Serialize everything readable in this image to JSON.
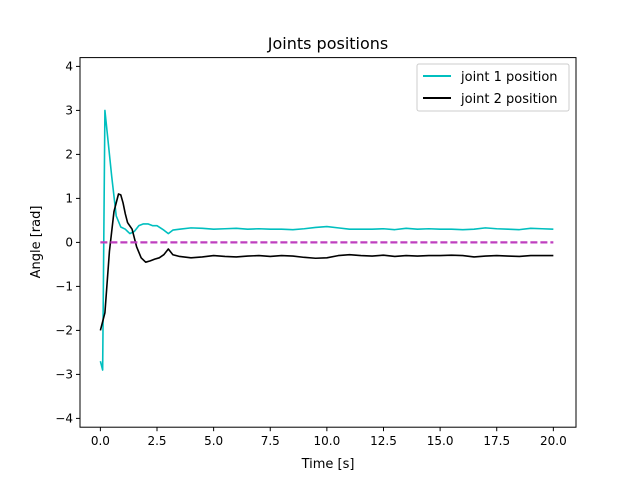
{
  "chart_data": {
    "type": "line",
    "title": "Joints positions",
    "xlabel": "Time [s]",
    "ylabel": "Angle [rad]",
    "xlim": [
      -0.9,
      21.0
    ],
    "ylim": [
      -4.2,
      4.2
    ],
    "xticks": [
      0.0,
      2.5,
      5.0,
      7.5,
      10.0,
      12.5,
      15.0,
      17.5,
      20.0
    ],
    "xtick_labels": [
      "0.0",
      "2.5",
      "5.0",
      "7.5",
      "10.0",
      "12.5",
      "15.0",
      "17.5",
      "20.0"
    ],
    "yticks": [
      -4,
      -3,
      -2,
      -1,
      0,
      1,
      2,
      3,
      4
    ],
    "ytick_labels": [
      "−4",
      "−3",
      "−2",
      "−1",
      "0",
      "1",
      "2",
      "3",
      "4"
    ],
    "grid": false,
    "legend_position": "top-right",
    "series": [
      {
        "name": "joint 1 position",
        "color": "#00bfbf",
        "style": "solid",
        "x": [
          0.0,
          0.1,
          0.2,
          0.3,
          0.5,
          0.7,
          0.9,
          1.1,
          1.3,
          1.5,
          1.7,
          1.9,
          2.1,
          2.3,
          2.5,
          2.8,
          3.0,
          3.2,
          3.5,
          4.0,
          4.5,
          5.0,
          5.5,
          6.0,
          6.5,
          7.0,
          7.5,
          8.0,
          8.5,
          9.0,
          9.5,
          10.0,
          10.5,
          11.0,
          11.5,
          12.0,
          12.5,
          13.0,
          13.5,
          14.0,
          14.5,
          15.0,
          15.5,
          16.0,
          16.5,
          17.0,
          17.5,
          18.0,
          18.5,
          19.0,
          19.5,
          20.0
        ],
        "y": [
          -2.7,
          -2.9,
          3.0,
          2.5,
          1.5,
          0.6,
          0.35,
          0.3,
          0.2,
          0.25,
          0.38,
          0.42,
          0.42,
          0.38,
          0.38,
          0.28,
          0.2,
          0.28,
          0.3,
          0.33,
          0.32,
          0.3,
          0.31,
          0.32,
          0.3,
          0.31,
          0.3,
          0.3,
          0.29,
          0.31,
          0.34,
          0.36,
          0.33,
          0.3,
          0.3,
          0.3,
          0.31,
          0.29,
          0.32,
          0.3,
          0.31,
          0.3,
          0.3,
          0.29,
          0.3,
          0.33,
          0.31,
          0.3,
          0.29,
          0.32,
          0.31,
          0.3
        ]
      },
      {
        "name": "joint 2 position",
        "color": "#000000",
        "style": "solid",
        "x": [
          0.0,
          0.2,
          0.4,
          0.6,
          0.8,
          0.9,
          1.0,
          1.1,
          1.2,
          1.4,
          1.6,
          1.8,
          2.0,
          2.2,
          2.4,
          2.6,
          2.8,
          3.0,
          3.2,
          3.5,
          4.0,
          4.5,
          5.0,
          5.5,
          6.0,
          6.5,
          7.0,
          7.5,
          8.0,
          8.5,
          9.0,
          9.5,
          10.0,
          10.5,
          11.0,
          11.5,
          12.0,
          12.5,
          13.0,
          13.5,
          14.0,
          14.5,
          15.0,
          15.5,
          16.0,
          16.5,
          17.0,
          17.5,
          18.0,
          18.5,
          19.0,
          19.5,
          20.0
        ],
        "y": [
          -2.0,
          -1.6,
          -0.2,
          0.7,
          1.1,
          1.08,
          0.9,
          0.65,
          0.45,
          0.3,
          -0.1,
          -0.35,
          -0.45,
          -0.42,
          -0.38,
          -0.35,
          -0.28,
          -0.15,
          -0.28,
          -0.32,
          -0.35,
          -0.33,
          -0.3,
          -0.32,
          -0.33,
          -0.31,
          -0.3,
          -0.32,
          -0.3,
          -0.31,
          -0.34,
          -0.36,
          -0.35,
          -0.3,
          -0.28,
          -0.3,
          -0.31,
          -0.29,
          -0.32,
          -0.3,
          -0.31,
          -0.3,
          -0.3,
          -0.29,
          -0.3,
          -0.33,
          -0.31,
          -0.3,
          -0.31,
          -0.32,
          -0.3,
          -0.3,
          -0.3
        ]
      },
      {
        "name": "",
        "color": "#bf3fbf",
        "style": "dashed",
        "x": [
          0.0,
          20.0
        ],
        "y": [
          0.0,
          0.0
        ]
      }
    ]
  }
}
